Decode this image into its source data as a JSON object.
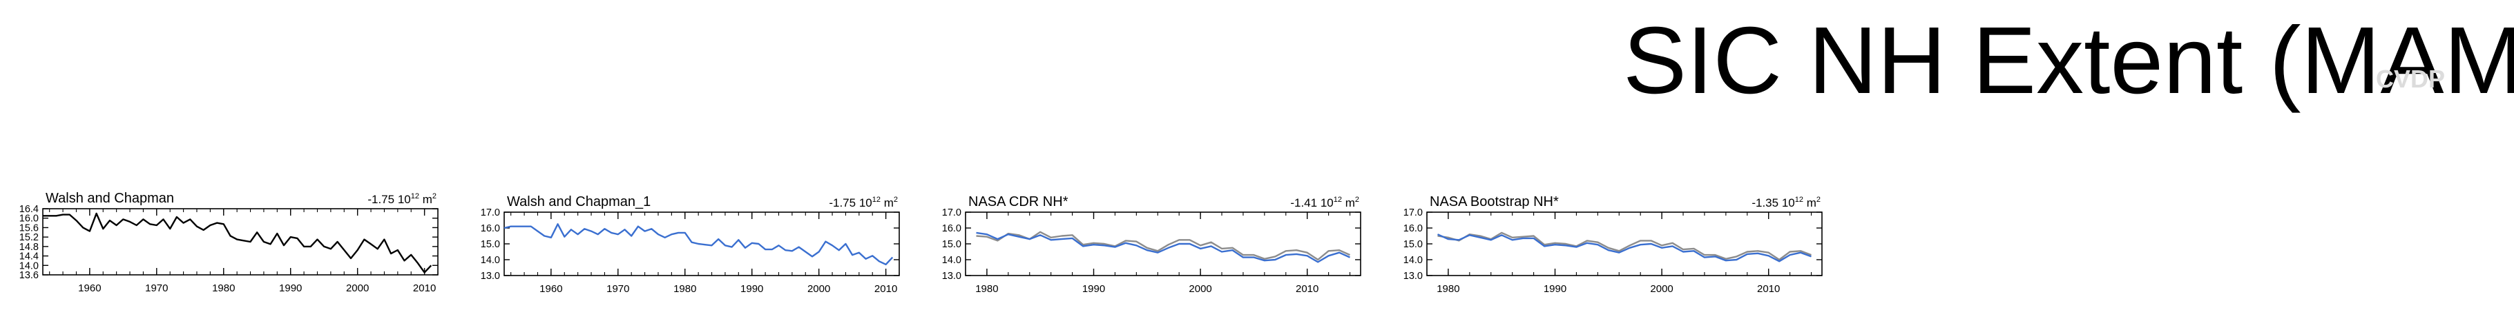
{
  "title": "SIC NH Extent (MAM)",
  "watermark": "CVDP",
  "colors": {
    "black_line": "#000000",
    "blue_line": "#3a6fd0",
    "grey_line": "#8c8c8c",
    "frame": "#000000"
  },
  "chart_data": [
    {
      "type": "line",
      "title": "Walsh and Chapman",
      "annotation_value": "-1.75 10",
      "annotation_exp": "12",
      "annotation_unit": "m",
      "annotation_unit_exp": "2",
      "xlim": [
        1953,
        2012
      ],
      "ylim": [
        13.6,
        16.4
      ],
      "yticks": [
        13.6,
        14.0,
        14.4,
        14.8,
        15.2,
        15.6,
        16.0,
        16.4
      ],
      "ytick_labels": [
        "13.6",
        "14.0",
        "14.4",
        "14.8",
        "15.2",
        "15.6",
        "16.0",
        "16.4"
      ],
      "xticks": [
        1960,
        1970,
        1980,
        1990,
        2000,
        2010
      ],
      "xtick_labels": [
        "1960",
        "1970",
        "1980",
        "1990",
        "2000",
        "2010"
      ],
      "x_minor_step": 2,
      "series": [
        {
          "color": "#000000",
          "x": [
            1953,
            1954,
            1955,
            1956,
            1957,
            1958,
            1959,
            1960,
            1961,
            1962,
            1963,
            1964,
            1965,
            1966,
            1967,
            1968,
            1969,
            1970,
            1971,
            1972,
            1973,
            1974,
            1975,
            1976,
            1977,
            1978,
            1979,
            1980,
            1981,
            1982,
            1983,
            1984,
            1985,
            1986,
            1987,
            1988,
            1989,
            1990,
            1991,
            1992,
            1993,
            1994,
            1995,
            1996,
            1997,
            1998,
            1999,
            2000,
            2001,
            2002,
            2003,
            2004,
            2005,
            2006,
            2007,
            2008,
            2009,
            2010,
            2011
          ],
          "values": [
            16.1,
            16.1,
            16.1,
            16.15,
            16.15,
            15.9,
            15.6,
            15.45,
            16.2,
            15.55,
            15.9,
            15.7,
            15.95,
            15.85,
            15.7,
            15.95,
            15.75,
            15.7,
            15.95,
            15.55,
            16.05,
            15.8,
            15.95,
            15.65,
            15.5,
            15.7,
            15.8,
            15.75,
            15.25,
            15.1,
            15.05,
            15.0,
            15.4,
            15.0,
            14.9,
            15.35,
            14.85,
            15.2,
            15.15,
            14.8,
            14.8,
            15.1,
            14.8,
            14.7,
            15.0,
            14.65,
            14.3,
            14.65,
            15.1,
            14.9,
            14.7,
            15.1,
            14.5,
            14.65,
            14.2,
            14.45,
            14.1,
            13.7,
            14.0
          ]
        }
      ]
    },
    {
      "type": "line",
      "title": "Walsh and Chapman_1",
      "annotation_value": "-1.75 10",
      "annotation_exp": "12",
      "annotation_unit": "m",
      "annotation_unit_exp": "2",
      "xlim": [
        1953,
        2012
      ],
      "ylim": [
        13.0,
        17.0
      ],
      "yticks": [
        13.0,
        14.0,
        15.0,
        16.0,
        17.0
      ],
      "ytick_labels": [
        "13.0",
        "14.0",
        "15.0",
        "16.0",
        "17.0"
      ],
      "xticks": [
        1960,
        1970,
        1980,
        1990,
        2000,
        2010
      ],
      "xtick_labels": [
        "1960",
        "1970",
        "1980",
        "1990",
        "2000",
        "2010"
      ],
      "x_minor_step": 2,
      "series": [
        {
          "color": "#3a6fd0",
          "x": [
            1953,
            1954,
            1955,
            1956,
            1957,
            1958,
            1959,
            1960,
            1961,
            1962,
            1963,
            1964,
            1965,
            1966,
            1967,
            1968,
            1969,
            1970,
            1971,
            1972,
            1973,
            1974,
            1975,
            1976,
            1977,
            1978,
            1979,
            1980,
            1981,
            1982,
            1983,
            1984,
            1985,
            1986,
            1987,
            1988,
            1989,
            1990,
            1991,
            1992,
            1993,
            1994,
            1995,
            1996,
            1997,
            1998,
            1999,
            2000,
            2001,
            2002,
            2003,
            2004,
            2005,
            2006,
            2007,
            2008,
            2009,
            2010,
            2011
          ],
          "values": [
            16.0,
            16.1,
            16.1,
            16.1,
            16.1,
            15.8,
            15.5,
            15.4,
            16.25,
            15.45,
            15.9,
            15.6,
            15.95,
            15.8,
            15.6,
            15.95,
            15.7,
            15.6,
            15.9,
            15.5,
            16.1,
            15.8,
            15.95,
            15.6,
            15.4,
            15.6,
            15.7,
            15.7,
            15.1,
            15.0,
            14.95,
            14.9,
            15.3,
            14.9,
            14.8,
            15.25,
            14.75,
            15.05,
            15.0,
            14.65,
            14.65,
            14.9,
            14.6,
            14.55,
            14.8,
            14.5,
            14.2,
            14.5,
            15.15,
            14.9,
            14.6,
            15.0,
            14.3,
            14.45,
            14.05,
            14.25,
            13.9,
            13.7,
            14.15
          ]
        }
      ]
    },
    {
      "type": "line",
      "title": "NASA CDR NH*",
      "annotation_value": "-1.41 10",
      "annotation_exp": "12",
      "annotation_unit": "m",
      "annotation_unit_exp": "2",
      "xlim": [
        1978,
        2015
      ],
      "ylim": [
        13.0,
        17.0
      ],
      "yticks": [
        13.0,
        14.0,
        15.0,
        16.0,
        17.0
      ],
      "ytick_labels": [
        "13.0",
        "14.0",
        "15.0",
        "16.0",
        "17.0"
      ],
      "xticks": [
        1980,
        1990,
        2000,
        2010
      ],
      "xtick_labels": [
        "1980",
        "1990",
        "2000",
        "2010"
      ],
      "x_minor_step": 2,
      "series": [
        {
          "color": "#8c8c8c",
          "x": [
            1979,
            1980,
            1981,
            1982,
            1983,
            1984,
            1985,
            1986,
            1987,
            1988,
            1989,
            1990,
            1991,
            1992,
            1993,
            1994,
            1995,
            1996,
            1997,
            1998,
            1999,
            2000,
            2001,
            2002,
            2003,
            2004,
            2005,
            2006,
            2007,
            2008,
            2009,
            2010,
            2011,
            2012,
            2013,
            2014
          ],
          "values": [
            15.5,
            15.45,
            15.2,
            15.65,
            15.55,
            15.3,
            15.75,
            15.4,
            15.5,
            15.55,
            14.95,
            15.05,
            15.0,
            14.85,
            15.2,
            15.15,
            14.75,
            14.55,
            14.95,
            15.25,
            15.25,
            14.9,
            15.1,
            14.7,
            14.75,
            14.3,
            14.3,
            14.05,
            14.2,
            14.55,
            14.6,
            14.45,
            14.0,
            14.55,
            14.6,
            14.3
          ]
        },
        {
          "color": "#3a6fd0",
          "x": [
            1979,
            1980,
            1981,
            1982,
            1983,
            1984,
            1985,
            1986,
            1987,
            1988,
            1989,
            1990,
            1991,
            1992,
            1993,
            1994,
            1995,
            1996,
            1997,
            1998,
            1999,
            2000,
            2001,
            2002,
            2003,
            2004,
            2005,
            2006,
            2007,
            2008,
            2009,
            2010,
            2011,
            2012,
            2013,
            2014
          ],
          "values": [
            15.7,
            15.6,
            15.3,
            15.6,
            15.45,
            15.3,
            15.55,
            15.25,
            15.3,
            15.35,
            14.85,
            14.95,
            14.9,
            14.8,
            15.05,
            14.9,
            14.6,
            14.45,
            14.75,
            15.0,
            15.0,
            14.7,
            14.85,
            14.5,
            14.6,
            14.15,
            14.15,
            13.95,
            14.0,
            14.3,
            14.35,
            14.25,
            13.85,
            14.25,
            14.45,
            14.15
          ]
        }
      ]
    },
    {
      "type": "line",
      "title": "NASA Bootstrap NH*",
      "annotation_value": "-1.35 10",
      "annotation_exp": "12",
      "annotation_unit": "m",
      "annotation_unit_exp": "2",
      "xlim": [
        1978,
        2015
      ],
      "ylim": [
        13.0,
        17.0
      ],
      "yticks": [
        13.0,
        14.0,
        15.0,
        16.0,
        17.0
      ],
      "ytick_labels": [
        "13.0",
        "14.0",
        "15.0",
        "16.0",
        "17.0"
      ],
      "xticks": [
        1980,
        1990,
        2000,
        2010
      ],
      "xtick_labels": [
        "1980",
        "1990",
        "2000",
        "2010"
      ],
      "x_minor_step": 2,
      "series": [
        {
          "color": "#8c8c8c",
          "x": [
            1979,
            1980,
            1981,
            1982,
            1983,
            1984,
            1985,
            1986,
            1987,
            1988,
            1989,
            1990,
            1991,
            1992,
            1993,
            1994,
            1995,
            1996,
            1997,
            1998,
            1999,
            2000,
            2001,
            2002,
            2003,
            2004,
            2005,
            2006,
            2007,
            2008,
            2009,
            2010,
            2011,
            2012,
            2013,
            2014
          ],
          "values": [
            15.5,
            15.4,
            15.2,
            15.6,
            15.5,
            15.3,
            15.7,
            15.4,
            15.45,
            15.5,
            14.95,
            15.05,
            15.0,
            14.85,
            15.2,
            15.1,
            14.75,
            14.55,
            14.9,
            15.2,
            15.2,
            14.9,
            15.05,
            14.65,
            14.7,
            14.3,
            14.3,
            14.05,
            14.2,
            14.5,
            14.55,
            14.45,
            14.0,
            14.5,
            14.55,
            14.3
          ]
        },
        {
          "color": "#3a6fd0",
          "x": [
            1979,
            1980,
            1981,
            1982,
            1983,
            1984,
            1985,
            1986,
            1987,
            1988,
            1989,
            1990,
            1991,
            1992,
            1993,
            1994,
            1995,
            1996,
            1997,
            1998,
            1999,
            2000,
            2001,
            2002,
            2003,
            2004,
            2005,
            2006,
            2007,
            2008,
            2009,
            2010,
            2011,
            2012,
            2013,
            2014
          ],
          "values": [
            15.6,
            15.3,
            15.25,
            15.55,
            15.4,
            15.25,
            15.55,
            15.25,
            15.35,
            15.35,
            14.85,
            14.95,
            14.9,
            14.8,
            15.05,
            14.95,
            14.6,
            14.45,
            14.75,
            14.95,
            15.0,
            14.75,
            14.85,
            14.5,
            14.55,
            14.15,
            14.2,
            13.95,
            14.0,
            14.35,
            14.4,
            14.25,
            13.9,
            14.3,
            14.45,
            14.2
          ]
        }
      ]
    }
  ]
}
